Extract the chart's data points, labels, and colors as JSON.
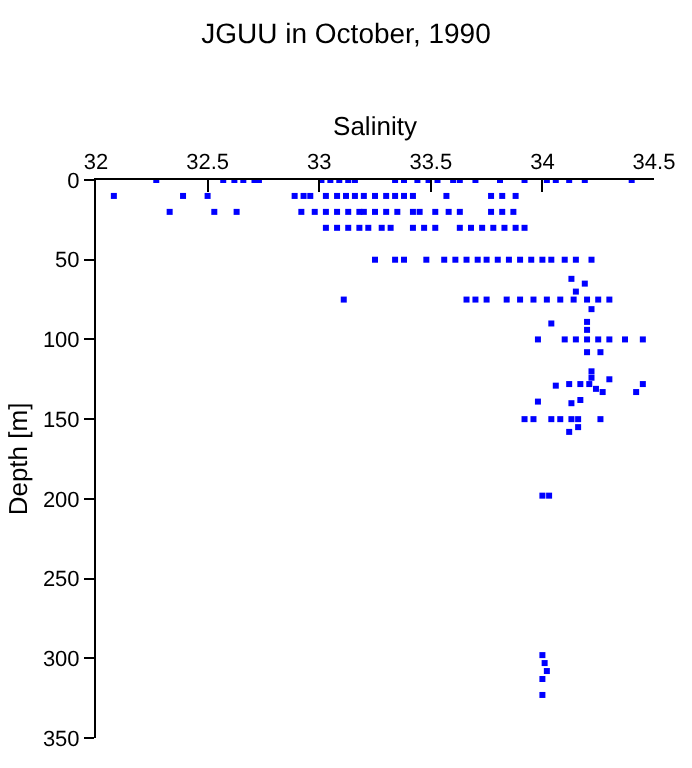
{
  "chart_data": {
    "type": "scatter",
    "title": "JGUU in October, 1990",
    "xlabel": "Salinity",
    "ylabel": "Depth [m]",
    "xlim": [
      32,
      34.5
    ],
    "xticks": [
      32,
      32.5,
      33,
      33.5,
      34,
      34.5
    ],
    "ylim": [
      350,
      0
    ],
    "yticks": [
      0,
      50,
      100,
      150,
      200,
      250,
      300,
      350
    ],
    "grid": false,
    "marker": "square",
    "legend": false,
    "series": [
      {
        "color": "#0000ff",
        "x": [
          32.27,
          32.57,
          32.62,
          32.66,
          32.71,
          32.73,
          33.01,
          33.05,
          33.09,
          33.13,
          33.16,
          33.34,
          33.38,
          33.44,
          33.49,
          33.53,
          33.6,
          33.63,
          33.7,
          33.81,
          33.92,
          34.02,
          34.06,
          34.12,
          34.19,
          34.4,
          32.08,
          32.39,
          32.5,
          32.89,
          32.93,
          32.96,
          33.03,
          33.08,
          33.12,
          33.16,
          33.2,
          33.25,
          33.3,
          33.34,
          33.38,
          33.42,
          33.57,
          33.77,
          33.82,
          33.88,
          32.33,
          32.53,
          32.63,
          32.92,
          32.98,
          33.03,
          33.08,
          33.13,
          33.18,
          33.2,
          33.25,
          33.3,
          33.35,
          33.42,
          33.45,
          33.52,
          33.58,
          33.63,
          33.77,
          33.82,
          33.87,
          33.03,
          33.08,
          33.13,
          33.18,
          33.22,
          33.28,
          33.32,
          33.42,
          33.47,
          33.52,
          33.63,
          33.68,
          33.73,
          33.78,
          33.83,
          33.88,
          33.92,
          33.25,
          33.34,
          33.38,
          33.48,
          33.56,
          33.61,
          33.66,
          33.71,
          33.75,
          33.8,
          33.85,
          33.9,
          33.95,
          34.0,
          34.04,
          34.1,
          34.15,
          34.22,
          34.13,
          34.19,
          34.15,
          33.11,
          33.66,
          33.7,
          33.75,
          33.84,
          33.9,
          33.96,
          34.02,
          34.08,
          34.14,
          34.2,
          34.25,
          34.3,
          34.22,
          34.04,
          34.2,
          34.2,
          33.98,
          34.1,
          34.15,
          34.2,
          34.25,
          34.3,
          34.37,
          34.45,
          34.2,
          34.26,
          34.22,
          34.22,
          34.21,
          34.12,
          34.06,
          34.17,
          34.24,
          34.3,
          34.45,
          33.98,
          34.13,
          34.17,
          34.27,
          34.42,
          33.92,
          33.96,
          34.04,
          34.08,
          34.13,
          34.16,
          34.26,
          34.16,
          34.12,
          34.0,
          34.03,
          34.0,
          34.01,
          34.02,
          34.0,
          34.0
        ],
        "values": [
          0,
          0,
          0,
          0,
          0,
          0,
          0,
          0,
          0,
          0,
          0,
          0,
          0,
          0,
          0,
          0,
          0,
          0,
          0,
          0,
          0,
          0,
          0,
          0,
          0,
          0,
          10,
          10,
          10,
          10,
          10,
          10,
          10,
          10,
          10,
          10,
          10,
          10,
          10,
          10,
          10,
          10,
          10,
          10,
          10,
          10,
          20,
          20,
          20,
          20,
          20,
          20,
          20,
          20,
          20,
          20,
          20,
          20,
          20,
          20,
          20,
          20,
          20,
          20,
          20,
          20,
          20,
          30,
          30,
          30,
          30,
          30,
          30,
          30,
          30,
          30,
          30,
          30,
          30,
          30,
          30,
          30,
          30,
          30,
          50,
          50,
          50,
          50,
          50,
          50,
          50,
          50,
          50,
          50,
          50,
          50,
          50,
          50,
          50,
          50,
          50,
          50,
          62,
          65,
          70,
          75,
          75,
          75,
          75,
          75,
          75,
          75,
          75,
          75,
          75,
          75,
          75,
          75,
          81,
          90,
          89,
          94,
          100,
          100,
          100,
          100,
          100,
          100,
          100,
          100,
          108,
          108,
          120,
          124,
          128,
          128,
          129,
          128,
          131,
          125,
          128,
          139,
          140,
          138,
          133,
          133,
          150,
          150,
          150,
          150,
          150,
          150,
          150,
          155,
          158,
          198,
          198,
          298,
          303,
          308,
          313,
          323
        ]
      }
    ]
  }
}
